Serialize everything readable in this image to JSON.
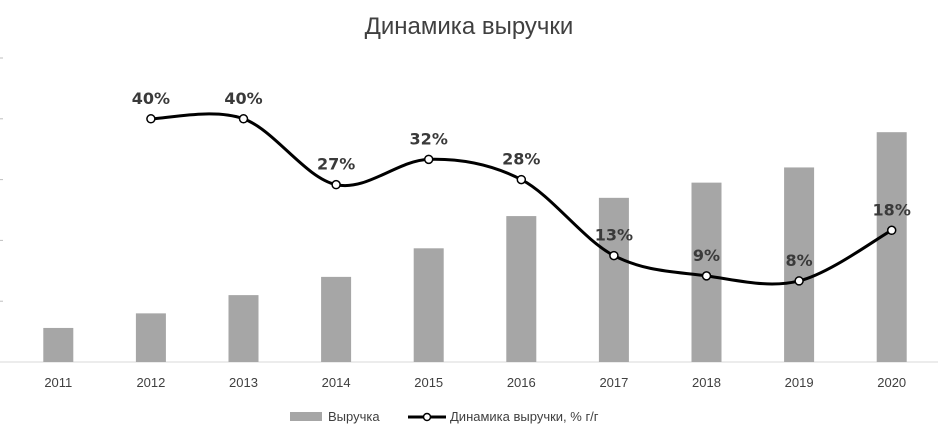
{
  "chart_data": {
    "type": "bar+line",
    "title": "Динамика выручки",
    "categories": [
      "2011",
      "2012",
      "2013",
      "2014",
      "2015",
      "2016",
      "2017",
      "2018",
      "2019",
      "2020"
    ],
    "series": [
      {
        "name": "Выручка",
        "type": "bar",
        "color": "#a6a6a6",
        "values": [
          0.56,
          0.8,
          1.1,
          1.4,
          1.87,
          2.4,
          2.7,
          2.95,
          3.2,
          3.78
        ]
      },
      {
        "name": "Динамика выручки, % г/г",
        "type": "line",
        "color": "#000000",
        "values": [
          null,
          40,
          40,
          27,
          32,
          28,
          13,
          9,
          8,
          18
        ],
        "labels": [
          "",
          "40%",
          "40%",
          "27%",
          "32%",
          "28%",
          "13%",
          "9%",
          "8%",
          "18%"
        ]
      }
    ],
    "bar_axis_range": [
      0,
      5
    ],
    "line_axis_range": [
      -8,
      52
    ],
    "grid": false,
    "legend_position": "bottom"
  }
}
